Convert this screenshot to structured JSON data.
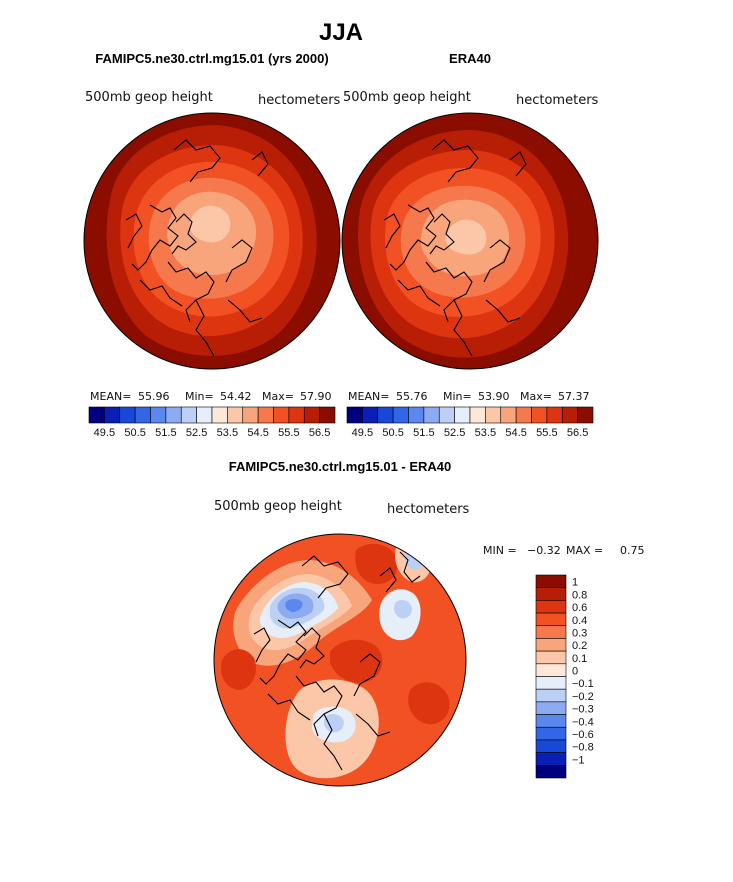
{
  "figure": {
    "title": "JJA"
  },
  "colors": {
    "ramp16": [
      "#00007f",
      "#0a1fb5",
      "#1848d8",
      "#3366e6",
      "#5b88ee",
      "#8cabf1",
      "#bcd0f5",
      "#e6eefa",
      "#fde7d8",
      "#fbc7a8",
      "#f9a57c",
      "#f6794d",
      "#f25223",
      "#de3511",
      "#b71e05",
      "#8a0d00"
    ],
    "coast": "#000000"
  },
  "chart_data": [
    {
      "type": "heatmap",
      "projection": "polar stereographic (north)",
      "title": "FAMIPC5.ne30.ctrl.mg15.01 (yrs 2000)",
      "left_label": "500mb geop height",
      "right_label": "hectometers",
      "stats": {
        "mean_label": "MEAN=",
        "mean": "55.96",
        "min_label": "Min=",
        "min": "54.42",
        "max_label": "Max=",
        "max": "57.90"
      },
      "colorbar_ticks": [
        "49.5",
        "50.5",
        "51.5",
        "52.5",
        "53.5",
        "54.5",
        "55.5",
        "56.5"
      ]
    },
    {
      "type": "heatmap",
      "projection": "polar stereographic (north)",
      "title": "ERA40",
      "left_label": "500mb geop height",
      "right_label": "hectometers",
      "stats": {
        "mean_label": "MEAN=",
        "mean": "55.76",
        "min_label": "Min=",
        "min": "53.90",
        "max_label": "Max=",
        "max": "57.37"
      },
      "colorbar_ticks": [
        "49.5",
        "50.5",
        "51.5",
        "52.5",
        "53.5",
        "54.5",
        "55.5",
        "56.5"
      ]
    },
    {
      "type": "heatmap",
      "projection": "polar stereographic (north)",
      "title": "FAMIPC5.ne30.ctrl.mg15.01 - ERA40",
      "left_label": "500mb geop height",
      "right_label": "hectometers",
      "stats": {
        "min_label": "MIN =",
        "min": "−0.32",
        "max_label": "MAX =",
        "max": "0.75"
      },
      "colorbar_ticks": [
        "1",
        "0.8",
        "0.6",
        "0.4",
        "0.3",
        "0.2",
        "0.1",
        "0",
        "−0.1",
        "−0.2",
        "−0.3",
        "−0.4",
        "−0.6",
        "−0.8",
        "−1"
      ],
      "colorbar_colors": [
        "#8a0d00",
        "#b71e05",
        "#de3511",
        "#f25223",
        "#f6794d",
        "#f9a57c",
        "#fbc7a8",
        "#fde7d8",
        "#e6eefa",
        "#bcd0f5",
        "#8cabf1",
        "#5b88ee",
        "#3366e6",
        "#1848d8",
        "#0a1fb5",
        "#00007f"
      ]
    }
  ]
}
